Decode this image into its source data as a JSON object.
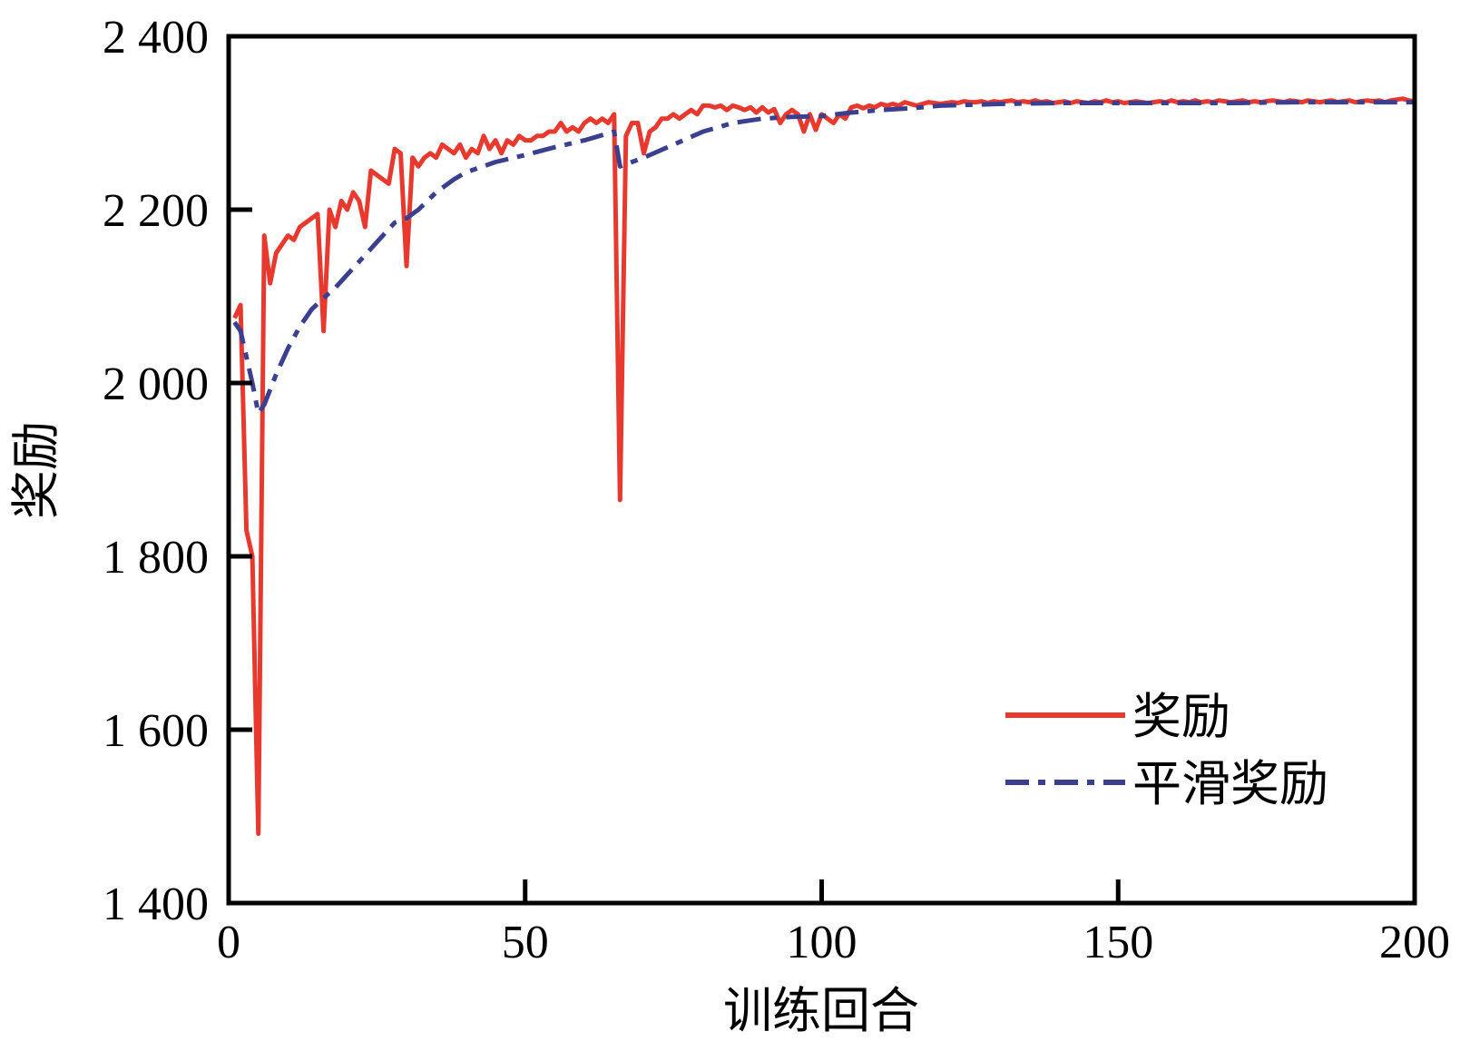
{
  "chart_data": {
    "type": "line",
    "title": "",
    "xlabel": "训练回合",
    "ylabel": "奖励",
    "xlim": [
      0,
      200
    ],
    "ylim": [
      1400,
      2400
    ],
    "x_ticks": [
      0,
      50,
      100,
      150,
      200
    ],
    "x_tick_labels": [
      "0",
      "50",
      "100",
      "150",
      "200"
    ],
    "y_ticks": [
      1400,
      1600,
      1800,
      2000,
      2200,
      2400
    ],
    "y_tick_labels": [
      "1 400",
      "1 600",
      "1 800",
      "2 000",
      "2 200",
      "2 400"
    ],
    "grid": false,
    "legend": {
      "position": "lower-right",
      "entries": [
        "奖励",
        "平滑奖励"
      ]
    },
    "series": [
      {
        "name": "奖励",
        "color": "#e8392f",
        "style": "solid",
        "points": [
          [
            1,
            2075
          ],
          [
            2,
            2090
          ],
          [
            3,
            1830
          ],
          [
            4,
            1800
          ],
          [
            5,
            1480
          ],
          [
            6,
            2170
          ],
          [
            7,
            2115
          ],
          [
            8,
            2150
          ],
          [
            9,
            2160
          ],
          [
            10,
            2170
          ],
          [
            11,
            2165
          ],
          [
            12,
            2180
          ],
          [
            13,
            2185
          ],
          [
            14,
            2190
          ],
          [
            15,
            2195
          ],
          [
            16,
            2060
          ],
          [
            17,
            2200
          ],
          [
            18,
            2180
          ],
          [
            19,
            2210
          ],
          [
            20,
            2200
          ],
          [
            21,
            2220
          ],
          [
            22,
            2210
          ],
          [
            23,
            2180
          ],
          [
            24,
            2245
          ],
          [
            25,
            2240
          ],
          [
            26,
            2235
          ],
          [
            27,
            2230
          ],
          [
            28,
            2270
          ],
          [
            29,
            2265
          ],
          [
            30,
            2135
          ],
          [
            31,
            2260
          ],
          [
            32,
            2250
          ],
          [
            33,
            2260
          ],
          [
            34,
            2265
          ],
          [
            35,
            2260
          ],
          [
            36,
            2275
          ],
          [
            37,
            2270
          ],
          [
            38,
            2265
          ],
          [
            39,
            2275
          ],
          [
            40,
            2260
          ],
          [
            41,
            2270
          ],
          [
            42,
            2265
          ],
          [
            43,
            2285
          ],
          [
            44,
            2270
          ],
          [
            45,
            2280
          ],
          [
            46,
            2265
          ],
          [
            47,
            2280
          ],
          [
            48,
            2275
          ],
          [
            49,
            2285
          ],
          [
            50,
            2280
          ],
          [
            51,
            2280
          ],
          [
            52,
            2285
          ],
          [
            53,
            2285
          ],
          [
            54,
            2290
          ],
          [
            55,
            2290
          ],
          [
            56,
            2300
          ],
          [
            57,
            2290
          ],
          [
            58,
            2295
          ],
          [
            59,
            2290
          ],
          [
            60,
            2300
          ],
          [
            61,
            2305
          ],
          [
            62,
            2300
          ],
          [
            63,
            2305
          ],
          [
            64,
            2300
          ],
          [
            65,
            2310
          ],
          [
            66,
            1865
          ],
          [
            67,
            2285
          ],
          [
            68,
            2300
          ],
          [
            69,
            2300
          ],
          [
            70,
            2265
          ],
          [
            71,
            2290
          ],
          [
            72,
            2295
          ],
          [
            73,
            2305
          ],
          [
            74,
            2305
          ],
          [
            75,
            2310
          ],
          [
            76,
            2305
          ],
          [
            77,
            2310
          ],
          [
            78,
            2315
          ],
          [
            79,
            2310
          ],
          [
            80,
            2320
          ],
          [
            81,
            2320
          ],
          [
            82,
            2318
          ],
          [
            83,
            2320
          ],
          [
            84,
            2315
          ],
          [
            85,
            2320
          ],
          [
            86,
            2318
          ],
          [
            87,
            2315
          ],
          [
            88,
            2318
          ],
          [
            89,
            2312
          ],
          [
            90,
            2318
          ],
          [
            91,
            2312
          ],
          [
            92,
            2316
          ],
          [
            93,
            2300
          ],
          [
            94,
            2310
          ],
          [
            95,
            2315
          ],
          [
            96,
            2310
          ],
          [
            97,
            2290
          ],
          [
            98,
            2310
          ],
          [
            99,
            2292
          ],
          [
            100,
            2310
          ],
          [
            101,
            2305
          ],
          [
            102,
            2300
          ],
          [
            103,
            2310
          ],
          [
            104,
            2305
          ],
          [
            105,
            2318
          ],
          [
            106,
            2320
          ],
          [
            107,
            2317
          ],
          [
            108,
            2320
          ],
          [
            109,
            2318
          ],
          [
            110,
            2322
          ],
          [
            111,
            2320
          ],
          [
            112,
            2322
          ],
          [
            113,
            2320
          ],
          [
            114,
            2324
          ],
          [
            115,
            2322
          ],
          [
            116,
            2320
          ],
          [
            117,
            2322
          ],
          [
            118,
            2324
          ],
          [
            119,
            2323
          ],
          [
            120,
            2322
          ],
          [
            121,
            2323
          ],
          [
            122,
            2324
          ],
          [
            123,
            2323
          ],
          [
            124,
            2325
          ],
          [
            125,
            2324
          ],
          [
            126,
            2324
          ],
          [
            127,
            2325
          ],
          [
            128,
            2323
          ],
          [
            129,
            2325
          ],
          [
            130,
            2324
          ],
          [
            131,
            2325
          ],
          [
            132,
            2326
          ],
          [
            133,
            2324
          ],
          [
            134,
            2325
          ],
          [
            135,
            2324
          ],
          [
            136,
            2326
          ],
          [
            137,
            2324
          ],
          [
            138,
            2325
          ],
          [
            139,
            2323
          ],
          [
            140,
            2324
          ],
          [
            141,
            2325
          ],
          [
            142,
            2323
          ],
          [
            143,
            2325
          ],
          [
            144,
            2324
          ],
          [
            145,
            2323
          ],
          [
            146,
            2325
          ],
          [
            147,
            2324
          ],
          [
            148,
            2326
          ],
          [
            149,
            2324
          ],
          [
            150,
            2325
          ],
          [
            151,
            2323
          ],
          [
            152,
            2324
          ],
          [
            153,
            2325
          ],
          [
            154,
            2324
          ],
          [
            155,
            2323
          ],
          [
            156,
            2324
          ],
          [
            157,
            2325
          ],
          [
            158,
            2324
          ],
          [
            159,
            2326
          ],
          [
            160,
            2324
          ],
          [
            161,
            2325
          ],
          [
            162,
            2324
          ],
          [
            163,
            2326
          ],
          [
            164,
            2324
          ],
          [
            165,
            2325
          ],
          [
            166,
            2324
          ],
          [
            167,
            2326
          ],
          [
            168,
            2325
          ],
          [
            169,
            2324
          ],
          [
            170,
            2325
          ],
          [
            171,
            2326
          ],
          [
            172,
            2324
          ],
          [
            173,
            2325
          ],
          [
            174,
            2324
          ],
          [
            175,
            2325
          ],
          [
            176,
            2326
          ],
          [
            177,
            2325
          ],
          [
            178,
            2324
          ],
          [
            179,
            2326
          ],
          [
            180,
            2325
          ],
          [
            181,
            2324
          ],
          [
            182,
            2326
          ],
          [
            183,
            2325
          ],
          [
            184,
            2324
          ],
          [
            185,
            2325
          ],
          [
            186,
            2326
          ],
          [
            187,
            2324
          ],
          [
            188,
            2325
          ],
          [
            189,
            2326
          ],
          [
            190,
            2324
          ],
          [
            191,
            2325
          ],
          [
            192,
            2326
          ],
          [
            193,
            2325
          ],
          [
            194,
            2326
          ],
          [
            195,
            2324
          ],
          [
            196,
            2326
          ],
          [
            197,
            2327
          ],
          [
            198,
            2328
          ],
          [
            199,
            2326
          ],
          [
            200,
            2325
          ]
        ]
      },
      {
        "name": "平滑奖励",
        "color": "#3b3f8f",
        "style": "dashdot",
        "points": [
          [
            1,
            2070
          ],
          [
            2,
            2060
          ],
          [
            3,
            2030
          ],
          [
            4,
            2000
          ],
          [
            5,
            1965
          ],
          [
            6,
            1975
          ],
          [
            8,
            2010
          ],
          [
            10,
            2040
          ],
          [
            12,
            2065
          ],
          [
            14,
            2085
          ],
          [
            16,
            2098
          ],
          [
            18,
            2110
          ],
          [
            20,
            2125
          ],
          [
            22,
            2140
          ],
          [
            24,
            2155
          ],
          [
            26,
            2170
          ],
          [
            28,
            2185
          ],
          [
            30,
            2190
          ],
          [
            32,
            2200
          ],
          [
            35,
            2220
          ],
          [
            38,
            2235
          ],
          [
            40,
            2243
          ],
          [
            45,
            2255
          ],
          [
            50,
            2263
          ],
          [
            55,
            2272
          ],
          [
            60,
            2280
          ],
          [
            65,
            2290
          ],
          [
            66,
            2250
          ],
          [
            68,
            2255
          ],
          [
            70,
            2260
          ],
          [
            75,
            2275
          ],
          [
            80,
            2290
          ],
          [
            85,
            2300
          ],
          [
            90,
            2305
          ],
          [
            95,
            2307
          ],
          [
            100,
            2308
          ],
          [
            105,
            2312
          ],
          [
            110,
            2315
          ],
          [
            115,
            2317
          ],
          [
            120,
            2320
          ],
          [
            130,
            2322
          ],
          [
            140,
            2323
          ],
          [
            150,
            2323
          ],
          [
            160,
            2323
          ],
          [
            170,
            2323
          ],
          [
            180,
            2324
          ],
          [
            190,
            2324
          ],
          [
            200,
            2324
          ]
        ]
      }
    ]
  }
}
